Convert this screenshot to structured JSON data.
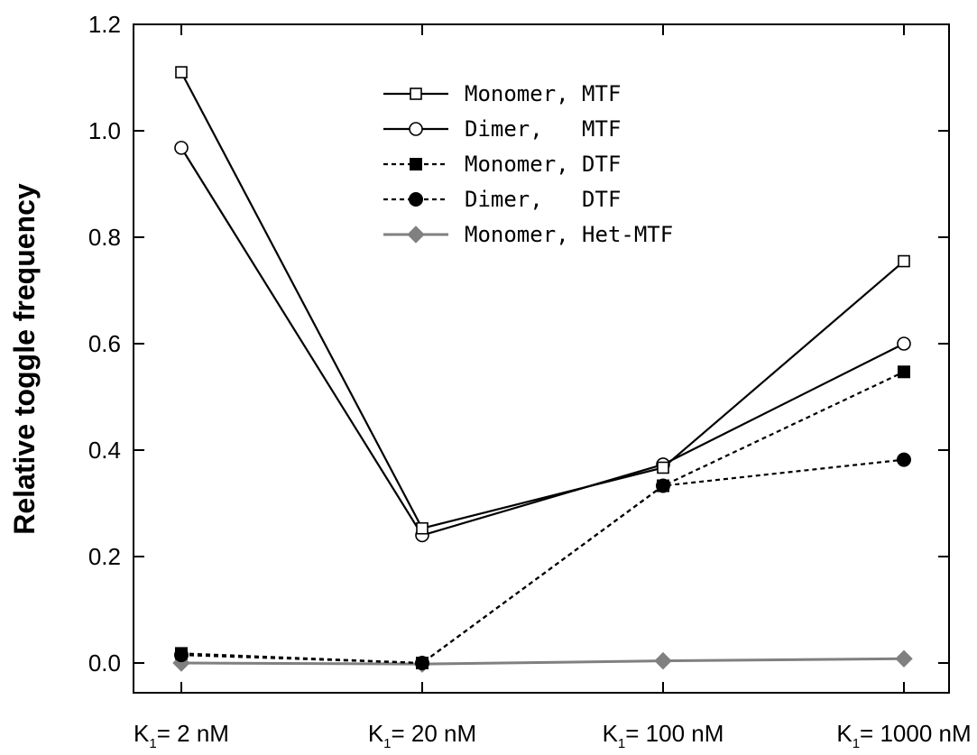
{
  "chart_data": {
    "type": "line",
    "title": "",
    "xlabel": "",
    "ylabel": "Relative toggle frequency",
    "categories": [
      {
        "main": "K",
        "sub": "1",
        "rest": "= 2 nM"
      },
      {
        "main": "K",
        "sub": "1",
        "rest": "= 20 nM"
      },
      {
        "main": "K",
        "sub": "1",
        "rest": "= 100 nM"
      },
      {
        "main": "K",
        "sub": "1",
        "rest": "= 1000 nM"
      }
    ],
    "ylim": [
      -0.05,
      1.2
    ],
    "yticks": [
      "0.0",
      "0.2",
      "0.4",
      "0.6",
      "0.8",
      "1.0",
      "1.2"
    ],
    "grid": false,
    "legend_position": "top-center",
    "series": [
      {
        "name": "Monomer, MTF",
        "values": [
          1.11,
          0.253,
          0.367,
          0.755
        ],
        "marker": "square-open",
        "line": "solid",
        "color": "#000000"
      },
      {
        "name": "Dimer,   MTF",
        "values": [
          0.968,
          0.24,
          0.373,
          0.6
        ],
        "marker": "circle-open",
        "line": "solid",
        "color": "#000000"
      },
      {
        "name": "Monomer, DTF",
        "values": [
          0.018,
          0.0,
          0.333,
          0.547
        ],
        "marker": "square-filled",
        "line": "dashed",
        "color": "#000000"
      },
      {
        "name": "Dimer,   DTF",
        "values": [
          0.015,
          0.0,
          0.333,
          0.382
        ],
        "marker": "circle-filled",
        "line": "dashed",
        "color": "#000000"
      },
      {
        "name": "Monomer, Het-MTF",
        "values": [
          0.0,
          -0.002,
          0.004,
          0.008
        ],
        "marker": "diamond-filled",
        "line": "solid",
        "color": "#808080"
      }
    ]
  }
}
